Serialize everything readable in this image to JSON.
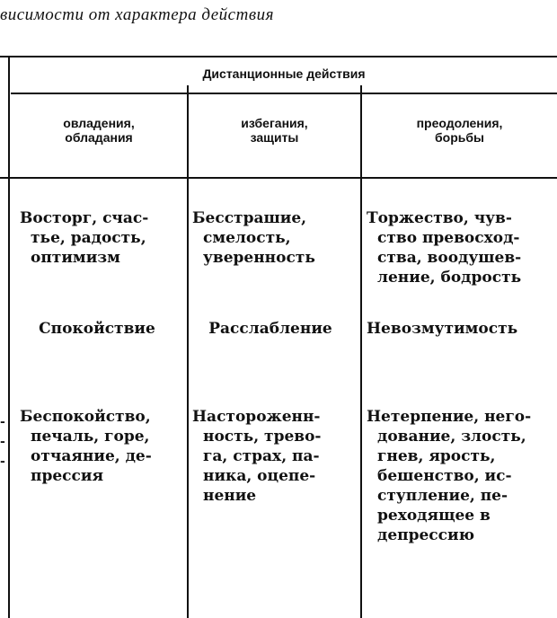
{
  "title": "висимости от характера действия",
  "table": {
    "group_header": "Дистанционные действия",
    "columns": [
      [
        "овладения,",
        "обладания"
      ],
      [
        "избегания,",
        "защиты"
      ],
      [
        "преодоления,",
        "борьбы"
      ]
    ],
    "rows": [
      [
        [
          "Восторг, счас-",
          "тье, радость,",
          "оптимизм"
        ],
        [
          "Бесстрашие,",
          "смелость,",
          "уверенность"
        ],
        [
          "Торжество, чув-",
          "ство превосход-",
          "ства, воодушев-",
          "ление, бодрость"
        ]
      ],
      [
        [
          "Спокойствие"
        ],
        [
          "Расслабление"
        ],
        [
          "Невозмутимость"
        ]
      ],
      [
        [
          "Беспокойство,",
          "печаль, горе,",
          "отчаяние, де-",
          "прессия"
        ],
        [
          "Настороженн-",
          "ность, трево-",
          "га, страх, па-",
          "ника, оцепе-",
          "нение"
        ],
        [
          "Нетерпение, него-",
          "дование, злость,",
          "гнев, ярость,",
          "бешенство, ис-",
          "ступление, пе-",
          "реходящее в",
          "депрессию"
        ]
      ]
    ],
    "left_fragments": [
      "-",
      "-",
      "-"
    ]
  }
}
